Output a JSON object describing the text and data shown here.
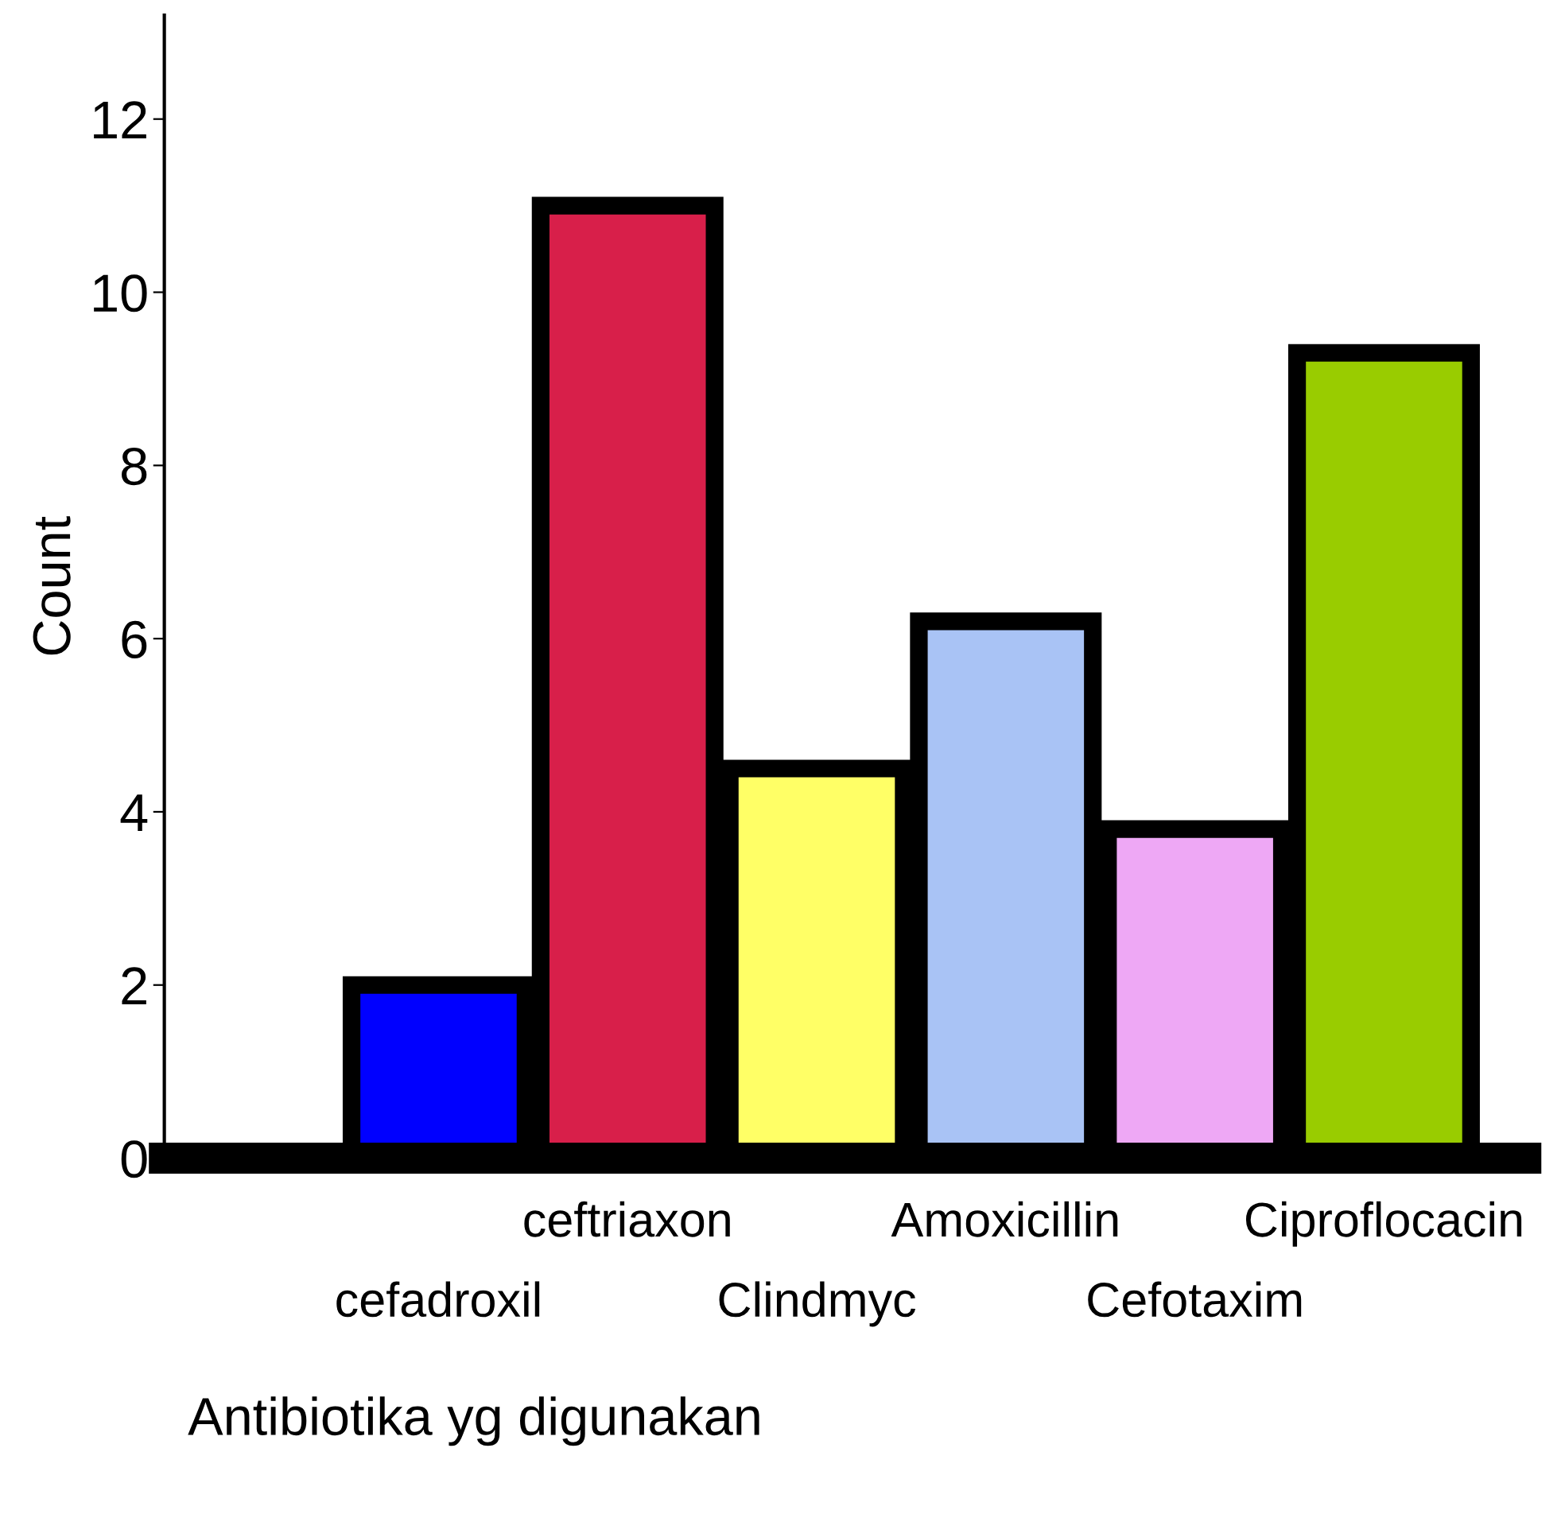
{
  "chart_data": {
    "type": "bar",
    "xlabel": "Antibiotika yg digunakan",
    "ylabel": "Count",
    "categories": [
      "cefadroxil",
      "ceftriaxon",
      "Clindmyc",
      "Amoxicillin",
      "Cefotaxim",
      "Ciproflocacin"
    ],
    "values": [
      2,
      11,
      4.5,
      6.2,
      3.8,
      9.3
    ],
    "colors": [
      "#0000ff",
      "#d81f4a",
      "#ffff66",
      "#a9c3f5",
      "#eea8f5",
      "#99cc00"
    ],
    "ylim": [
      0,
      13.2
    ],
    "yticks": [
      0,
      2,
      4,
      6,
      8,
      10,
      12
    ],
    "grid": false
  }
}
